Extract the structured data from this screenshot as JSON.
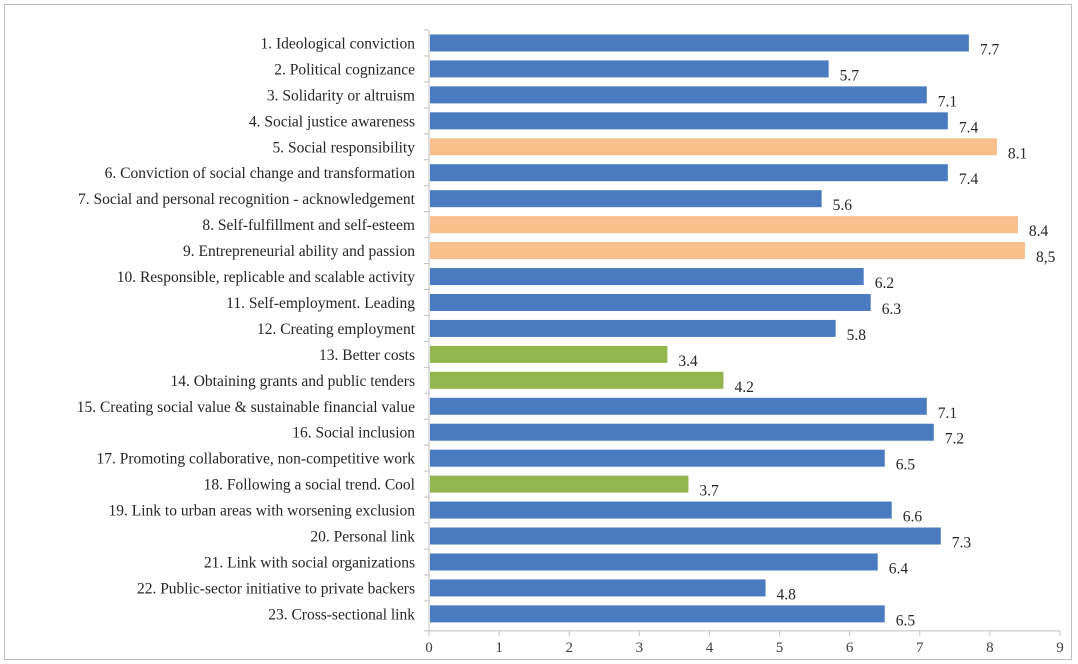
{
  "chart_data": {
    "type": "bar",
    "orientation": "horizontal",
    "title": "",
    "xlabel": "",
    "ylabel": "",
    "xlim": [
      0,
      9
    ],
    "x_ticks": [
      "0",
      "1",
      "2",
      "3",
      "4",
      "5",
      "6",
      "7",
      "8",
      "9"
    ],
    "grid": false,
    "legend": "none",
    "colors": {
      "blue": "#4a7abf",
      "orange": "#f9c08d",
      "green": "#92b54e"
    },
    "bars": [
      {
        "label": "1. Ideological conviction",
        "value": 7.7,
        "display": "7.7",
        "color": "blue"
      },
      {
        "label": "2. Political cognizance",
        "value": 5.7,
        "display": "5.7",
        "color": "blue"
      },
      {
        "label": "3. Solidarity or altruism",
        "value": 7.1,
        "display": "7.1",
        "color": "blue"
      },
      {
        "label": "4. Social justice awareness",
        "value": 7.4,
        "display": "7.4",
        "color": "blue"
      },
      {
        "label": "5. Social responsibility",
        "value": 8.1,
        "display": "8.1",
        "color": "orange"
      },
      {
        "label": "6. Conviction of social change and transformation",
        "value": 7.4,
        "display": "7.4",
        "color": "blue"
      },
      {
        "label": "7. Social and personal recognition - acknowledgement",
        "value": 5.6,
        "display": "5.6",
        "color": "blue"
      },
      {
        "label": "8. Self-fulfillment and self-esteem",
        "value": 8.4,
        "display": "8.4",
        "color": "orange"
      },
      {
        "label": "9. Entrepreneurial ability and passion",
        "value": 8.5,
        "display": "8,5",
        "color": "orange"
      },
      {
        "label": "10. Responsible, replicable and scalable activity",
        "value": 6.2,
        "display": "6.2",
        "color": "blue"
      },
      {
        "label": "11. Self-employment. Leading",
        "value": 6.3,
        "display": "6.3",
        "color": "blue"
      },
      {
        "label": "12. Creating employment",
        "value": 5.8,
        "display": "5.8",
        "color": "blue"
      },
      {
        "label": "13. Better costs",
        "value": 3.4,
        "display": "3.4",
        "color": "green"
      },
      {
        "label": "14. Obtaining grants and public tenders",
        "value": 4.2,
        "display": "4.2",
        "color": "green"
      },
      {
        "label": "15. Creating social value & sustainable financial value",
        "value": 7.1,
        "display": "7.1",
        "color": "blue"
      },
      {
        "label": "16. Social inclusion",
        "value": 7.2,
        "display": "7.2",
        "color": "blue"
      },
      {
        "label": "17. Promoting collaborative, non-competitive work",
        "value": 6.5,
        "display": "6.5",
        "color": "blue"
      },
      {
        "label": "18. Following a social trend. Cool",
        "value": 3.7,
        "display": "3.7",
        "color": "green"
      },
      {
        "label": "19. Link to urban areas with worsening exclusion",
        "value": 6.6,
        "display": "6.6",
        "color": "blue"
      },
      {
        "label": "20. Personal link",
        "value": 7.3,
        "display": "7.3",
        "color": "blue"
      },
      {
        "label": "21. Link with social organizations",
        "value": 6.4,
        "display": "6.4",
        "color": "blue"
      },
      {
        "label": "22. Public-sector initiative to private backers",
        "value": 4.8,
        "display": "4.8",
        "color": "blue"
      },
      {
        "label": "23. Cross-sectional link",
        "value": 6.5,
        "display": "6.5",
        "color": "blue"
      }
    ]
  }
}
